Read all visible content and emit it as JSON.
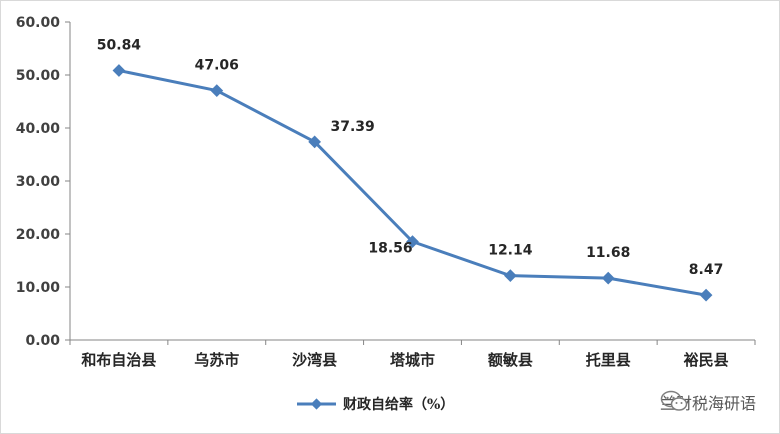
{
  "chart_data": {
    "type": "line",
    "categories": [
      "和布自治县",
      "乌苏市",
      "沙湾县",
      "塔城市",
      "额敏县",
      "托里县",
      "裕民县"
    ],
    "series": [
      {
        "name": "财政自给率（%）",
        "values": [
          50.84,
          47.06,
          37.39,
          18.56,
          12.14,
          11.68,
          8.47
        ],
        "labels": [
          "50.84",
          "47.06",
          "37.39",
          "18.56",
          "12.14",
          "11.68",
          "8.47"
        ],
        "color": "#4a7ebb"
      }
    ],
    "ylim": [
      0,
      60
    ],
    "yticks": [
      0,
      10,
      20,
      30,
      40,
      50,
      60
    ],
    "ytick_labels": [
      "0.00",
      "10.00",
      "20.00",
      "30.00",
      "40.00",
      "50.00",
      "60.00"
    ],
    "grid": false,
    "legend_position": "bottom"
  },
  "watermark": {
    "text": "兰财税海研语",
    "icon": "wechat-icon"
  }
}
